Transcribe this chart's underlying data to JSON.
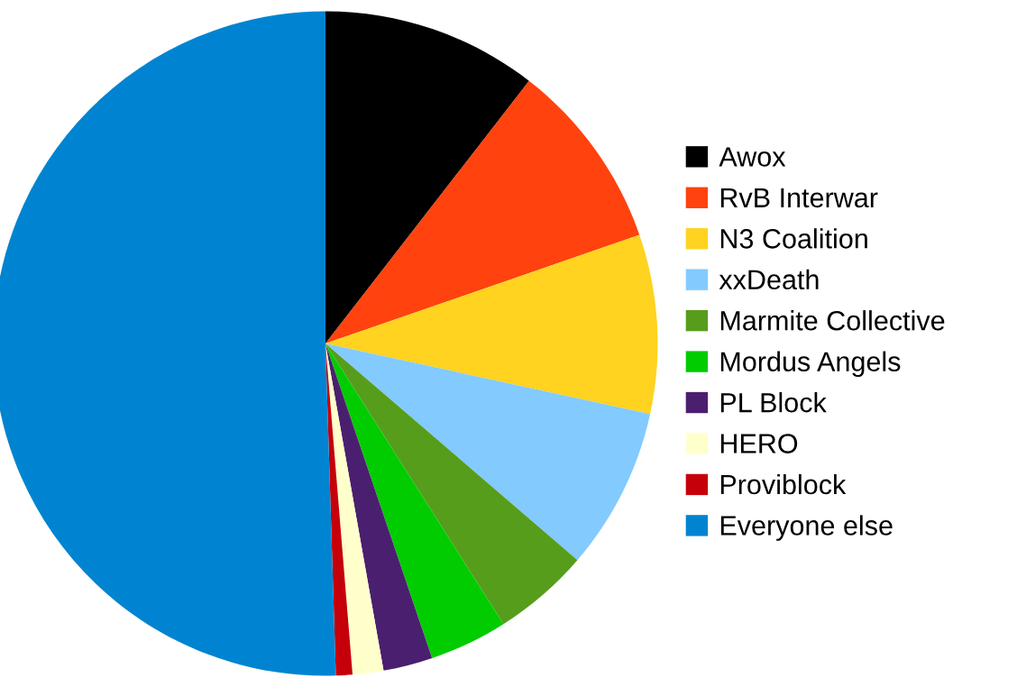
{
  "chart_data": {
    "type": "pie",
    "categories": [
      "Awox",
      "RvB Interwar",
      "N3 Coalition",
      "xxDeath",
      "Marmite Collective",
      "Mordus Angels",
      "PL Block",
      "HERO",
      "Proviblock",
      "Everyone else"
    ],
    "values": [
      10.5,
      9.2,
      8.7,
      7.9,
      4.7,
      3.8,
      2.4,
      1.5,
      0.8,
      50.5
    ],
    "colors": [
      "#000000",
      "#ff420e",
      "#ffd320",
      "#83caff",
      "#579d1c",
      "#00cc00",
      "#4b1f6f",
      "#ffffcc",
      "#c5000b",
      "#0084d1"
    ],
    "legend": "right"
  }
}
